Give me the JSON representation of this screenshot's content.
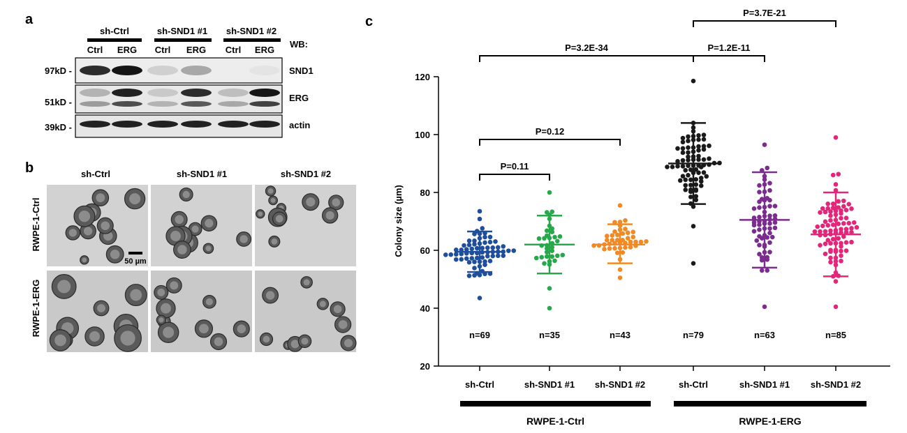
{
  "panels": {
    "a": "a",
    "b": "b",
    "c": "c"
  },
  "western_blot": {
    "groups": [
      "sh-Ctrl",
      "sh-SND1 #1",
      "sh-SND1 #2"
    ],
    "lanes": [
      "Ctrl",
      "ERG",
      "Ctrl",
      "ERG",
      "Ctrl",
      "ERG"
    ],
    "wb_label": "WB:",
    "markers": [
      "97kD -",
      "51kD -",
      "39kD -"
    ],
    "proteins": [
      "SND1",
      "ERG",
      "actin"
    ],
    "band_intensity": {
      "SND1": [
        0.85,
        0.95,
        0.12,
        0.3,
        0.0,
        0.03
      ],
      "ERG_upper": [
        0.25,
        0.9,
        0.15,
        0.85,
        0.2,
        0.95
      ],
      "ERG_lower": [
        0.35,
        0.7,
        0.25,
        0.65,
        0.3,
        0.75
      ],
      "actin": [
        0.9,
        0.9,
        0.9,
        0.9,
        0.9,
        0.9
      ]
    }
  },
  "micrographs": {
    "columns": [
      "sh-Ctrl",
      "sh-SND1 #1",
      "sh-SND1 #2"
    ],
    "rows": [
      "RWPE-1-Ctrl",
      "RWPE-1-ERG"
    ],
    "scale_bar": "50 µm"
  },
  "chart_data": {
    "type": "scatter",
    "ylabel": "Colony size (µm)",
    "ylim": [
      20,
      120
    ],
    "yticks": [
      20,
      40,
      60,
      80,
      100,
      120
    ],
    "categories": [
      "sh-Ctrl",
      "sh-SND1 #1",
      "sh-SND1 #2",
      "sh-Ctrl",
      "sh-SND1 #1",
      "sh-SND1 #2"
    ],
    "group_labels": [
      {
        "label": "RWPE-1-Ctrl",
        "categories": [
          0,
          1,
          2
        ]
      },
      {
        "label": "RWPE-1-ERG",
        "categories": [
          3,
          4,
          5
        ]
      }
    ],
    "series": [
      {
        "n_label": "n=69",
        "color": "#1f4e9c",
        "mean": 59.5,
        "sd_low": 52.5,
        "sd_high": 66.5,
        "min": 43.5,
        "max": 73.5,
        "count": 69
      },
      {
        "n_label": "n=35",
        "color": "#27a84a",
        "mean": 62,
        "sd_low": 52,
        "sd_high": 72,
        "min": 40,
        "max": 80,
        "count": 35
      },
      {
        "n_label": "n=43",
        "color": "#f08a24",
        "mean": 62,
        "sd_low": 55.5,
        "sd_high": 69,
        "min": 50.5,
        "max": 75.5,
        "count": 43
      },
      {
        "n_label": "n=79",
        "color": "#1a1a1a",
        "mean": 90,
        "sd_low": 76,
        "sd_high": 104,
        "min": 55.5,
        "max": 118.5,
        "count": 79
      },
      {
        "n_label": "n=63",
        "color": "#7b2d8e",
        "mean": 70.5,
        "sd_low": 54,
        "sd_high": 87,
        "min": 40.5,
        "max": 96.5,
        "count": 63
      },
      {
        "n_label": "n=85",
        "color": "#e3267a",
        "mean": 65.5,
        "sd_low": 51,
        "sd_high": 80,
        "min": 40.5,
        "max": 99,
        "count": 85
      }
    ],
    "comparisons": [
      {
        "from": 0,
        "to": 1,
        "label": "P=0.11"
      },
      {
        "from": 0,
        "to": 2,
        "label": "P=0.12"
      },
      {
        "from": 0,
        "to": 3,
        "label": "P=3.2E-34"
      },
      {
        "from": 3,
        "to": 4,
        "label": "P=1.2E-11"
      },
      {
        "from": 3,
        "to": 5,
        "label": "P=3.7E-21"
      }
    ]
  }
}
